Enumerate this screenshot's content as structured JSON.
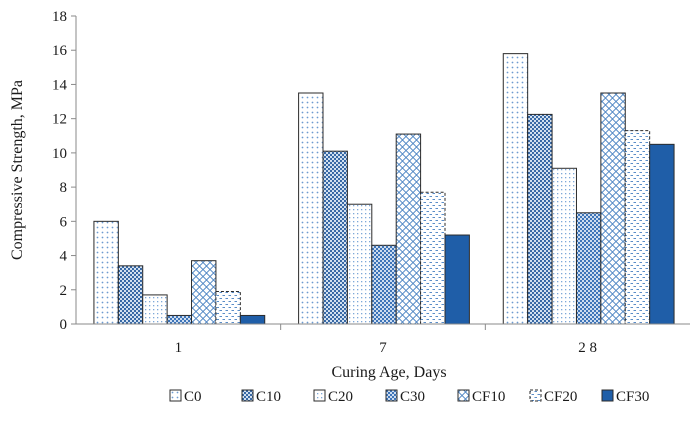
{
  "chart_data": {
    "type": "bar",
    "title": "",
    "xlabel": "Curing Age, Days",
    "ylabel": "Compressive Strength, MPa",
    "ylim": [
      0,
      18
    ],
    "yticks": [
      0,
      2,
      4,
      6,
      8,
      10,
      12,
      14,
      16,
      18
    ],
    "categories": [
      "1",
      "7",
      "2 8"
    ],
    "grid": false,
    "legend_position": "bottom",
    "series": [
      {
        "name": "C0",
        "values": [
          6.0,
          13.5,
          15.8
        ],
        "pattern": "dots-light",
        "color": "#5b8fc9"
      },
      {
        "name": "C10",
        "values": [
          3.4,
          10.1,
          12.25
        ],
        "pattern": "dots-dense",
        "color": "#2d62a3"
      },
      {
        "name": "C20",
        "values": [
          1.7,
          7.0,
          9.1
        ],
        "pattern": "dots-grid",
        "color": "#6f9fd3"
      },
      {
        "name": "C30",
        "values": [
          0.5,
          4.6,
          6.5
        ],
        "pattern": "checker",
        "color": "#3d74b8"
      },
      {
        "name": "CF10",
        "values": [
          3.7,
          11.1,
          13.5
        ],
        "pattern": "diamond",
        "color": "#4f86c4"
      },
      {
        "name": "CF20",
        "values": [
          1.9,
          7.7,
          11.3
        ],
        "pattern": "dash",
        "color": "#4f86c4"
      },
      {
        "name": "CF30",
        "values": [
          0.5,
          5.2,
          10.5
        ],
        "pattern": "solid",
        "color": "#1f5ea8"
      }
    ]
  }
}
